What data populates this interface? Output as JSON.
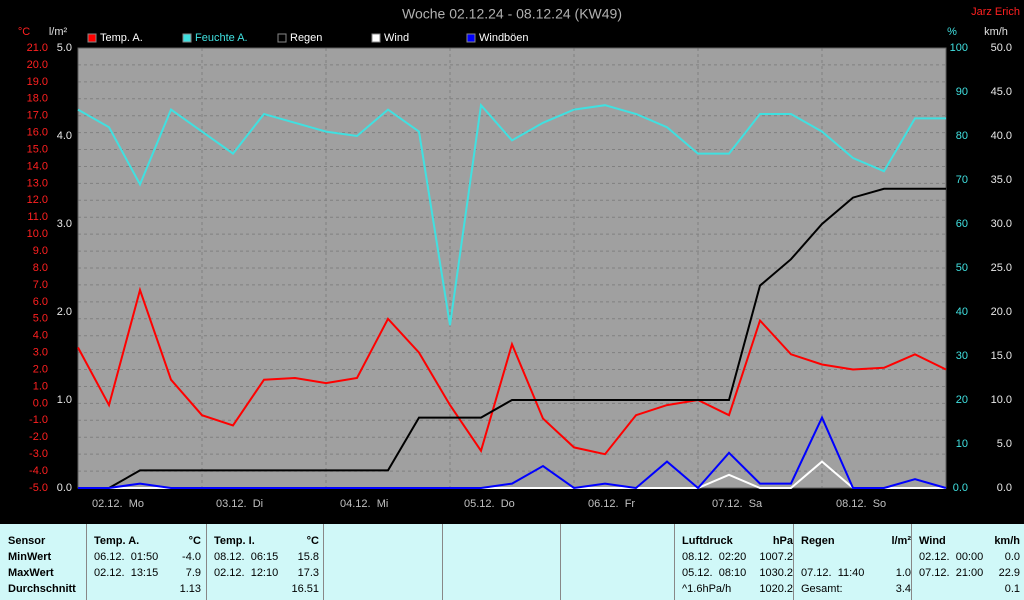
{
  "chart_data": {
    "type": "line",
    "title": "Woche 02.12.24 - 08.12.24 (KW49)",
    "author": "Jarz Erich",
    "x": [
      0,
      6,
      12,
      18,
      24,
      30,
      36,
      42,
      48,
      54,
      60,
      66,
      72,
      78,
      84,
      90,
      96,
      102,
      108,
      114,
      120,
      126,
      132,
      138,
      144,
      150,
      156,
      162,
      168
    ],
    "xlim": [
      0,
      168
    ],
    "xticks": [
      {
        "value": 0,
        "label": "02.12.  Mo"
      },
      {
        "value": 24,
        "label": "03.12.  Di"
      },
      {
        "value": 48,
        "label": "04.12.  Mi"
      },
      {
        "value": 72,
        "label": "05.12.  Do"
      },
      {
        "value": 96,
        "label": "06.12.  Fr"
      },
      {
        "value": 120,
        "label": "07.12.  Sa"
      },
      {
        "value": 144,
        "label": "08.12.  So"
      }
    ],
    "ylabel": "°C",
    "ylim": [
      -5,
      21
    ],
    "yticks": [
      {
        "value": -5,
        "label": "-5.0"
      },
      {
        "value": -4,
        "label": "-4.0"
      },
      {
        "value": -3,
        "label": "-3.0"
      },
      {
        "value": -2,
        "label": "-2.0"
      },
      {
        "value": -1,
        "label": "-1.0"
      },
      {
        "value": 0,
        "label": "0.0"
      },
      {
        "value": 1,
        "label": "1.0"
      },
      {
        "value": 2,
        "label": "2.0"
      },
      {
        "value": 3,
        "label": "3.0"
      },
      {
        "value": 4,
        "label": "4.0"
      },
      {
        "value": 5,
        "label": "5.0"
      },
      {
        "value": 6,
        "label": "6.0"
      },
      {
        "value": 7,
        "label": "7.0"
      },
      {
        "value": 8,
        "label": "8.0"
      },
      {
        "value": 9,
        "label": "9.0"
      },
      {
        "value": 10,
        "label": "10.0"
      },
      {
        "value": 11,
        "label": "11.0"
      },
      {
        "value": 12,
        "label": "12.0"
      },
      {
        "value": 13,
        "label": "13.0"
      },
      {
        "value": 14,
        "label": "14.0"
      },
      {
        "value": 15,
        "label": "15.0"
      },
      {
        "value": 16,
        "label": "16.0"
      },
      {
        "value": 17,
        "label": "17.0"
      },
      {
        "value": 18,
        "label": "18.0"
      },
      {
        "value": 19,
        "label": "19.0"
      },
      {
        "value": 20,
        "label": "20.0"
      },
      {
        "value": 21,
        "label": "21.0"
      }
    ],
    "y2label": "l/m²",
    "y2lim": [
      0,
      5
    ],
    "y2ticks": [
      {
        "value": 0,
        "label": "0.0"
      },
      {
        "value": 1,
        "label": "1.0"
      },
      {
        "value": 2,
        "label": "2.0"
      },
      {
        "value": 3,
        "label": "3.0"
      },
      {
        "value": 4,
        "label": "4.0"
      },
      {
        "value": 5,
        "label": "5.0"
      }
    ],
    "y3label": "%",
    "y3lim": [
      0,
      100
    ],
    "y3ticks": [
      {
        "value": 0,
        "label": "0.0"
      },
      10,
      20,
      30,
      40,
      50,
      60,
      70,
      80,
      90,
      100
    ],
    "y4label": "km/h",
    "y4lim": [
      0,
      50
    ],
    "y4ticks": [
      {
        "value": 0,
        "label": "0.0"
      },
      {
        "value": 5,
        "label": "5.0"
      },
      {
        "value": 10,
        "label": "10.0"
      },
      {
        "value": 15,
        "label": "15.0"
      },
      {
        "value": 20,
        "label": "20.0"
      },
      {
        "value": 25,
        "label": "25.0"
      },
      {
        "value": 30,
        "label": "30.0"
      },
      {
        "value": 35,
        "label": "35.0"
      },
      {
        "value": 40,
        "label": "40.0"
      },
      {
        "value": 45,
        "label": "45.0"
      },
      {
        "value": 50,
        "label": "50.0"
      }
    ],
    "grid": true,
    "series": [
      {
        "name": "Temp. A.",
        "color": "#ff0000",
        "axis": "y",
        "values": [
          3.3,
          -0.1,
          6.7,
          1.4,
          -0.7,
          -1.3,
          1.4,
          1.5,
          1.2,
          1.5,
          5.0,
          3.0,
          -0.1,
          -2.8,
          3.5,
          -0.9,
          -2.6,
          -3.0,
          -0.7,
          -0.1,
          0.2,
          -0.7,
          4.9,
          2.9,
          2.3,
          2.0,
          2.1,
          2.9,
          2.0
        ]
      },
      {
        "name": "Feuchte A.",
        "color": "#40e0e0",
        "axis": "y3",
        "values": [
          86,
          82,
          69,
          86,
          81,
          76,
          85,
          83,
          81,
          80,
          86,
          81,
          37,
          87,
          79,
          83,
          86,
          87,
          85,
          82,
          76,
          76,
          85,
          85,
          81,
          75,
          72,
          84,
          84
        ]
      },
      {
        "name": "Regen",
        "color": "#000000",
        "axis": "y2",
        "values": [
          0,
          0,
          0.2,
          0.2,
          0.2,
          0.2,
          0.2,
          0.2,
          0.2,
          0.2,
          0.2,
          0.8,
          0.8,
          0.8,
          1.0,
          1.0,
          1.0,
          1.0,
          1.0,
          1.0,
          1.0,
          1.0,
          2.3,
          2.6,
          3.0,
          3.3,
          3.4,
          3.4,
          3.4
        ]
      },
      {
        "name": "Wind",
        "color": "#ffffff",
        "axis": "y4",
        "values": [
          0,
          0,
          0,
          0,
          0,
          0,
          0,
          0,
          0,
          0,
          0,
          0,
          0,
          0,
          0,
          0,
          0,
          0,
          0,
          0,
          0,
          1.5,
          0,
          0,
          3.0,
          0,
          0,
          0,
          0
        ]
      },
      {
        "name": "Windböen",
        "color": "#0000ff",
        "axis": "y4",
        "values": [
          0,
          0,
          0.5,
          0,
          0,
          0,
          0,
          0,
          0,
          0,
          0,
          0,
          0,
          0,
          0.5,
          2.5,
          0,
          0.5,
          0,
          3.0,
          0,
          4.0,
          0.5,
          0.5,
          8.0,
          0,
          0,
          1.0,
          0
        ]
      }
    ]
  },
  "stats": {
    "row_labels": [
      "Sensor",
      "MinWert",
      "MaxWert",
      "Durchschnitt"
    ],
    "groups": [
      {
        "name": "Temp. A.",
        "unit": "°C",
        "rows": [
          [
            "06.12.  01:50",
            "-4.0"
          ],
          [
            "02.12.  13:15",
            "7.9"
          ],
          [
            "1.13"
          ]
        ]
      },
      {
        "name": "Temp. I.",
        "unit": "°C",
        "rows": [
          [
            "08.12.  06:15",
            "15.8"
          ],
          [
            "02.12.  12:10",
            "17.3"
          ],
          [
            "16.51"
          ]
        ]
      },
      {
        "name": "Luftdruck",
        "unit": "hPa",
        "rows": [
          [
            "08.12.  02:20",
            "1007.2"
          ],
          [
            "05.12.  08:10",
            "1030.2"
          ],
          [
            "^1.6hPa/h",
            "1020.2"
          ]
        ]
      },
      {
        "name": "Regen",
        "unit": "l/m²",
        "rows": [
          [],
          [
            "07.12.  11:40",
            "1.0"
          ],
          [
            "Gesamt:",
            "3.4"
          ]
        ]
      },
      {
        "name": "Wind",
        "unit": "km/h",
        "rows": [
          [
            "02.12.  00:00",
            "0.0"
          ],
          [
            "07.12.  21:00",
            "22.9"
          ],
          [
            "0.1"
          ]
        ]
      }
    ]
  }
}
